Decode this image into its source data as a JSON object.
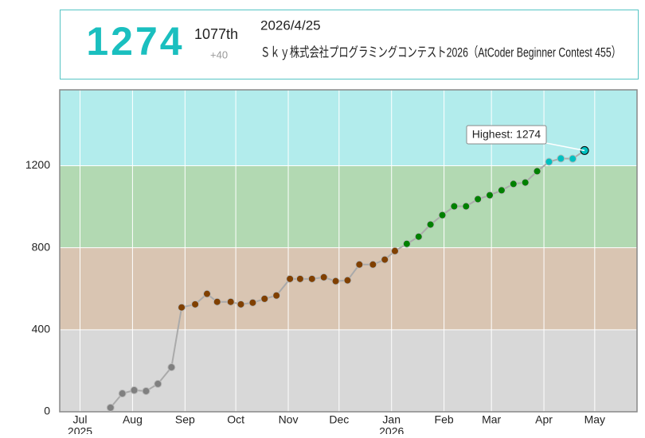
{
  "header": {
    "rating": "1274",
    "rank": "1077th",
    "diff": "+40",
    "date": "2026/4/25",
    "contest": "Ｓｋｙ株式会社プログラミングコンテスト2026（AtCoder Beginner Contest 455）"
  },
  "chart_data": {
    "type": "line",
    "x": [
      "2025-07-19",
      "2025-07-26",
      "2025-08-02",
      "2025-08-09",
      "2025-08-16",
      "2025-08-24",
      "2025-08-30",
      "2025-09-07",
      "2025-09-14",
      "2025-09-20",
      "2025-09-28",
      "2025-10-04",
      "2025-10-11",
      "2025-10-18",
      "2025-10-25",
      "2025-11-02",
      "2025-11-08",
      "2025-11-15",
      "2025-11-22",
      "2025-11-29",
      "2025-12-06",
      "2025-12-13",
      "2025-12-21",
      "2025-12-28",
      "2026-01-03",
      "2026-01-10",
      "2026-01-17",
      "2026-01-24",
      "2026-01-31",
      "2026-02-07",
      "2026-02-14",
      "2026-02-21",
      "2026-02-28",
      "2026-03-07",
      "2026-03-14",
      "2026-03-21",
      "2026-03-28",
      "2026-04-04",
      "2026-04-11",
      "2026-04-18",
      "2026-04-25"
    ],
    "values": [
      20,
      89,
      105,
      101,
      136,
      217,
      509,
      524,
      575,
      536,
      536,
      524,
      532,
      551,
      567,
      648,
      648,
      648,
      656,
      637,
      641,
      718,
      718,
      742,
      784,
      819,
      854,
      913,
      959,
      1002,
      1002,
      1037,
      1056,
      1080,
      1111,
      1118,
      1173,
      1219,
      1235,
      1234,
      1274
    ],
    "xlim": [
      "2025-06-19",
      "2026-05-26"
    ],
    "xticks": [
      {
        "value": "2025-07-01",
        "label": "Jul",
        "year": "2025"
      },
      {
        "value": "2025-08-01",
        "label": "Aug"
      },
      {
        "value": "2025-09-01",
        "label": "Sep"
      },
      {
        "value": "2025-10-01",
        "label": "Oct"
      },
      {
        "value": "2025-11-01",
        "label": "Nov"
      },
      {
        "value": "2025-12-01",
        "label": "Dec"
      },
      {
        "value": "2026-01-01",
        "label": "Jan",
        "year": "2026"
      },
      {
        "value": "2026-02-01",
        "label": "Feb"
      },
      {
        "value": "2026-03-01",
        "label": "Mar"
      },
      {
        "value": "2026-04-01",
        "label": "Apr"
      },
      {
        "value": "2026-05-01",
        "label": "May"
      }
    ],
    "ylim": [
      0,
      1570
    ],
    "yticks": [
      0,
      400,
      800,
      1200
    ],
    "grid": true,
    "bands": [
      {
        "from": 0,
        "color": "#d8d8d8",
        "dot": "#808080"
      },
      {
        "from": 400,
        "color": "#d9c5b2",
        "dot": "#804000"
      },
      {
        "from": 800,
        "color": "#b2d9b2",
        "dot": "#008000"
      },
      {
        "from": 1200,
        "color": "#b2ecec",
        "dot": "#00c0c0"
      }
    ],
    "line_color": "#aaaaaa",
    "highest": {
      "label": "Highest: 1274",
      "value": 1274
    }
  }
}
